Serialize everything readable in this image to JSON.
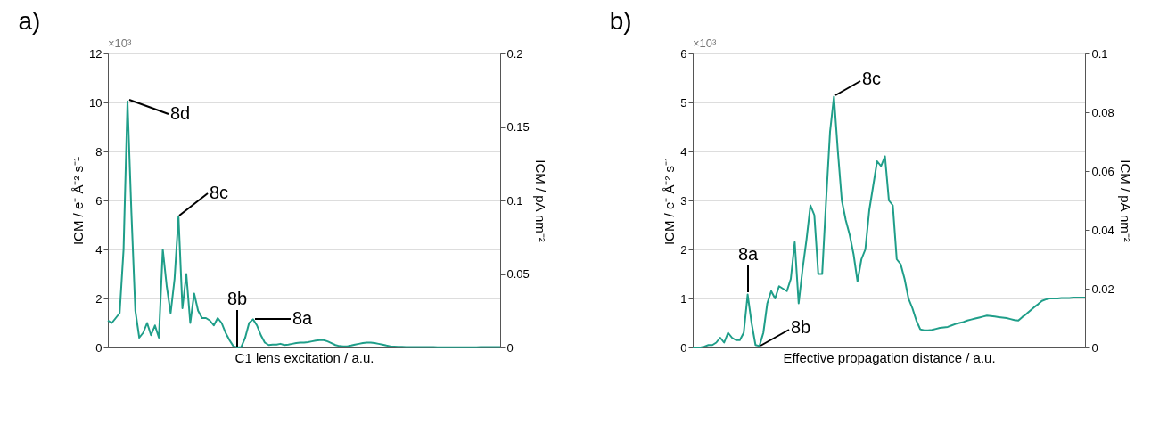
{
  "chart_data": [
    {
      "type": "line",
      "title": "a)",
      "xlabel": "C1 lens excitation / a.u.",
      "ylabel": "ICM / e⁻ Å⁻² s⁻¹",
      "y2label": "ICM / pA nm⁻²",
      "categories": [
        null,
        null,
        null,
        null,
        null,
        null,
        null,
        null,
        null,
        null,
        null,
        null,
        null,
        null,
        null,
        null,
        null,
        null,
        null,
        null,
        null,
        null,
        null,
        null,
        null,
        null,
        null,
        null,
        null,
        null,
        null,
        null,
        null,
        null,
        null,
        null,
        null,
        null,
        null,
        null,
        null,
        null,
        null,
        null,
        null,
        null,
        null,
        null,
        null,
        null,
        null,
        null,
        null,
        null,
        null,
        null,
        null,
        null,
        null,
        null,
        null,
        null,
        null,
        null,
        null,
        null,
        null,
        null,
        null,
        null,
        null,
        null,
        null,
        null,
        null,
        null,
        null,
        null,
        null,
        null,
        null,
        null,
        null,
        null,
        null,
        null,
        null,
        null,
        null,
        null,
        null,
        null,
        null,
        null,
        null,
        null,
        null,
        null,
        null,
        null,
        null
      ],
      "series": [
        {
          "color": "#1f9e89",
          "values": [
            1.1,
            1.0,
            1.2,
            1.4,
            4.0,
            10.05,
            5.5,
            1.5,
            0.4,
            0.6,
            1.0,
            0.5,
            0.9,
            0.4,
            4.0,
            2.5,
            1.4,
            2.8,
            5.35,
            1.6,
            3.0,
            1.0,
            2.2,
            1.5,
            1.2,
            1.2,
            1.1,
            0.9,
            1.2,
            1.0,
            0.6,
            0.3,
            0.05,
            0,
            0.02,
            0.4,
            1.0,
            1.15,
            0.9,
            0.5,
            0.2,
            0.1,
            0.12,
            0.12,
            0.15,
            0.1,
            0.12,
            0.15,
            0.18,
            0.2,
            0.2,
            0.22,
            0.25,
            0.28,
            0.3,
            0.3,
            0.25,
            0.18,
            0.1,
            0.06,
            0.05,
            0.05,
            0.08,
            0.12,
            0.15,
            0.18,
            0.2,
            0.2,
            0.18,
            0.15,
            0.12,
            0.08,
            0.05,
            0.04,
            0.03,
            0.03,
            0.02,
            0.02,
            0.02,
            0.02,
            0.02,
            0.02,
            0.02,
            0.02,
            0.01,
            0.01,
            0.01,
            0.01,
            0.01,
            0.01,
            0.01,
            0.01,
            0.01,
            0.01,
            0.01,
            0.02,
            0.02,
            0.02,
            0.02,
            0.02,
            0.02
          ]
        }
      ],
      "ylim": [
        0,
        12
      ],
      "yticks": [
        0,
        2,
        4,
        6,
        8,
        10,
        12
      ],
      "y2lim": [
        0,
        0.2
      ],
      "y2ticks": [
        0,
        0.05,
        0.1,
        0.15,
        0.2
      ],
      "grid": "y",
      "annotations": [
        "×10³",
        "8d",
        "8c",
        "8b",
        "8a"
      ]
    },
    {
      "type": "line",
      "title": "b)",
      "xlabel": "Effective propagation distance / a.u.",
      "ylabel": "ICM / e⁻ Å⁻² s⁻¹",
      "y2label": "ICM / pA nm⁻²",
      "categories": [
        null,
        null,
        null,
        null,
        null,
        null,
        null,
        null,
        null,
        null,
        null,
        null,
        null,
        null,
        null,
        null,
        null,
        null,
        null,
        null,
        null,
        null,
        null,
        null,
        null,
        null,
        null,
        null,
        null,
        null,
        null,
        null,
        null,
        null,
        null,
        null,
        null,
        null,
        null,
        null,
        null,
        null,
        null,
        null,
        null,
        null,
        null,
        null,
        null,
        null,
        null,
        null,
        null,
        null,
        null,
        null,
        null,
        null,
        null,
        null,
        null,
        null,
        null,
        null,
        null,
        null,
        null,
        null,
        null,
        null,
        null,
        null,
        null,
        null,
        null,
        null,
        null,
        null,
        null,
        null,
        null,
        null,
        null,
        null,
        null,
        null,
        null,
        null,
        null,
        null,
        null,
        null,
        null,
        null,
        null,
        null,
        null,
        null,
        null,
        null,
        null
      ],
      "series": [
        {
          "color": "#1f9e89",
          "values": [
            0,
            0,
            0,
            0.02,
            0.05,
            0.05,
            0.1,
            0.2,
            0.1,
            0.3,
            0.2,
            0.15,
            0.15,
            0.3,
            1.08,
            0.5,
            0.05,
            0.03,
            0.3,
            0.9,
            1.15,
            1.0,
            1.25,
            1.2,
            1.15,
            1.4,
            2.15,
            0.9,
            1.6,
            2.2,
            2.9,
            2.7,
            1.5,
            1.5,
            3.0,
            4.4,
            5.12,
            4.0,
            3.0,
            2.6,
            2.3,
            1.9,
            1.35,
            1.8,
            2.0,
            2.8,
            3.3,
            3.8,
            3.7,
            3.9,
            3.0,
            2.9,
            1.8,
            1.7,
            1.4,
            1.0,
            0.8,
            0.55,
            0.37,
            0.35,
            0.35,
            0.36,
            0.38,
            0.4,
            0.41,
            0.42,
            0.45,
            0.48,
            0.5,
            0.52,
            0.55,
            0.57,
            0.59,
            0.61,
            0.63,
            0.65,
            0.64,
            0.63,
            0.62,
            0.61,
            0.6,
            0.58,
            0.56,
            0.55,
            0.62,
            0.68,
            0.75,
            0.82,
            0.88,
            0.95,
            0.98,
            1.0,
            1.0,
            1.0,
            1.01,
            1.01,
            1.01,
            1.02,
            1.02,
            1.02,
            1.02
          ]
        }
      ],
      "ylim": [
        0,
        6
      ],
      "yticks": [
        0,
        1,
        2,
        3,
        4,
        5,
        6
      ],
      "y2lim": [
        0,
        0.1
      ],
      "y2ticks": [
        0,
        0.02,
        0.04,
        0.06,
        0.08,
        0.1
      ],
      "grid": "y",
      "annotations": [
        "×10³",
        "8a",
        "8b",
        "8c"
      ]
    }
  ]
}
